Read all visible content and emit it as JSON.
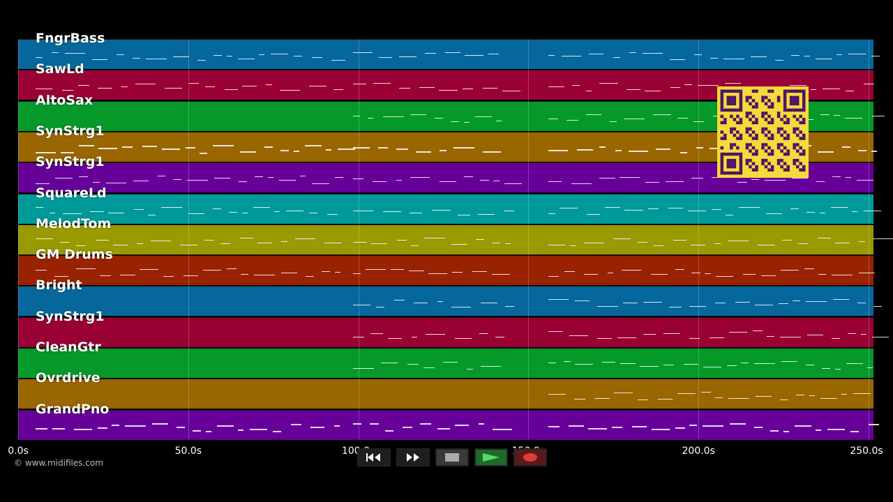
{
  "tracks": [
    {
      "name": "FngrBass",
      "color": "#06679c"
    },
    {
      "name": "SawLd",
      "color": "#990033"
    },
    {
      "name": "AltoSax",
      "color": "#05992a"
    },
    {
      "name": "SynStrg1",
      "color": "#996600"
    },
    {
      "name": "SynStrg1",
      "color": "#660099"
    },
    {
      "name": "SquareLd",
      "color": "#009999"
    },
    {
      "name": "MelodTom",
      "color": "#999900"
    },
    {
      "name": "GM Drums",
      "color": "#992200"
    },
    {
      "name": "Bright",
      "color": "#06679c"
    },
    {
      "name": "SynStrg1",
      "color": "#990033"
    },
    {
      "name": "CleanGtr",
      "color": "#05992a"
    },
    {
      "name": "Ovrdrive",
      "color": "#996600"
    },
    {
      "name": "GrandPno",
      "color": "#660099"
    }
  ],
  "timeline": {
    "ticks": [
      "0.0s",
      "50.0s",
      "100.0s",
      "150.0s",
      "200.0s",
      "250.0s"
    ],
    "tick_values": [
      0,
      50,
      100,
      150,
      200,
      250
    ]
  },
  "copyright": "© www.midifiles.com",
  "transport": {
    "rewind_icon": "rewind-icon",
    "forward_icon": "fast-forward-icon",
    "stop_icon": "stop-icon",
    "play_icon": "play-icon",
    "record_icon": "record-icon"
  }
}
